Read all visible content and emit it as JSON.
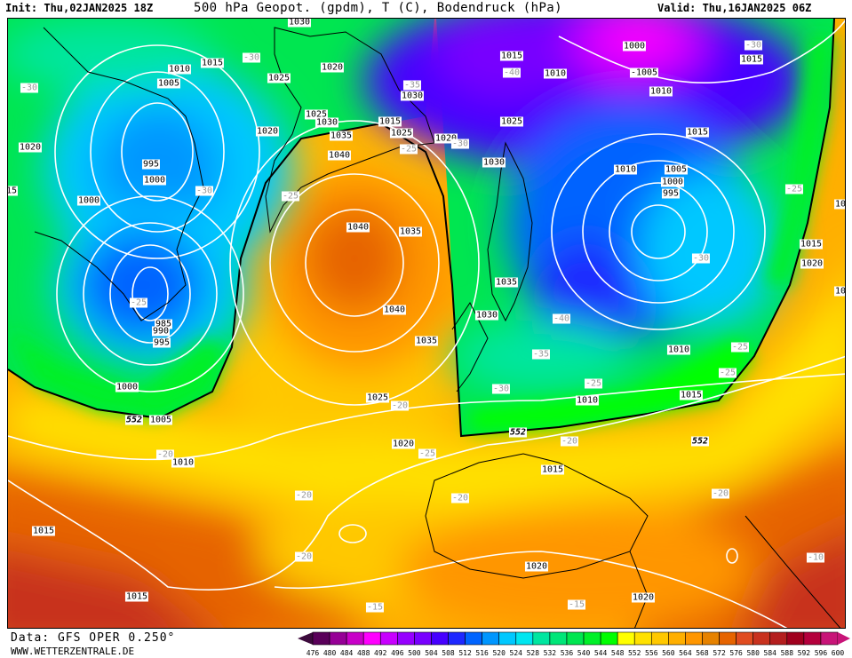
{
  "header": {
    "init": "Init: Thu,02JAN2025 18Z",
    "title": "500 hPa Geopot. (gpdm), T (C), Bodendruck (hPa)",
    "valid": "Valid: Thu,16JAN2025 06Z"
  },
  "footer": {
    "data_source": "Data: GFS OPER 0.250°",
    "website": "WWW.WETTERZENTRALE.DE"
  },
  "legend": {
    "labels": [
      "476",
      "480",
      "484",
      "488",
      "492",
      "496",
      "500",
      "504",
      "508",
      "512",
      "516",
      "520",
      "524",
      "528",
      "532",
      "536",
      "540",
      "544",
      "548",
      "552",
      "556",
      "560",
      "564",
      "568",
      "572",
      "576",
      "580",
      "584",
      "588",
      "592",
      "596",
      "600"
    ],
    "colors": [
      "#5a005a",
      "#960096",
      "#c800c8",
      "#ff00ff",
      "#c800ff",
      "#9600ff",
      "#7800ff",
      "#4600ff",
      "#1e28ff",
      "#0064ff",
      "#0096ff",
      "#00c8ff",
      "#00e6f0",
      "#00e6a0",
      "#00e678",
      "#00e650",
      "#00f028",
      "#00ff00",
      "#ffff00",
      "#ffe100",
      "#ffc800",
      "#ffaf00",
      "#ff9600",
      "#e68200",
      "#e66400",
      "#e04c20",
      "#c8321e",
      "#b41e1e",
      "#a0001e",
      "#b4003c",
      "#c81478"
    ],
    "below_color": "#3c0a3c",
    "above_color": "#c81478"
  },
  "map": {
    "contour_552_color": "#000000",
    "isobar_color": "#ffffff",
    "isotherm_color": "#a0a0a0",
    "labels": [
      {
        "text": "1030",
        "kind": "p"
      },
      {
        "text": "1015",
        "kind": "p"
      },
      {
        "text": "1010",
        "kind": "p"
      },
      {
        "text": "1005",
        "kind": "p"
      },
      {
        "text": "1025",
        "kind": "p"
      },
      {
        "text": "1020",
        "kind": "p"
      },
      {
        "text": "-30",
        "kind": "t"
      },
      {
        "text": "-30",
        "kind": "t"
      },
      {
        "text": "1020",
        "kind": "p"
      },
      {
        "text": "995",
        "kind": "p"
      },
      {
        "text": "1000",
        "kind": "p"
      },
      {
        "text": "15",
        "kind": "p"
      },
      {
        "text": "1000",
        "kind": "p"
      },
      {
        "text": "1020",
        "kind": "p"
      },
      {
        "text": "1025",
        "kind": "p"
      },
      {
        "text": "1030",
        "kind": "p"
      },
      {
        "text": "1035",
        "kind": "p"
      },
      {
        "text": "1040",
        "kind": "p"
      },
      {
        "text": "1015",
        "kind": "p"
      },
      {
        "text": "1025",
        "kind": "p"
      },
      {
        "text": "-25",
        "kind": "t"
      },
      {
        "text": "-35",
        "kind": "t"
      },
      {
        "text": "1030",
        "kind": "p"
      },
      {
        "text": "-30",
        "kind": "t"
      },
      {
        "text": "-25",
        "kind": "t"
      },
      {
        "text": "1040",
        "kind": "p"
      },
      {
        "text": "1035",
        "kind": "p"
      },
      {
        "text": "1040",
        "kind": "p"
      },
      {
        "text": "-25",
        "kind": "t"
      },
      {
        "text": "985",
        "kind": "p"
      },
      {
        "text": "990",
        "kind": "p"
      },
      {
        "text": "995",
        "kind": "p"
      },
      {
        "text": "1000",
        "kind": "p"
      },
      {
        "text": "552",
        "kind": "c"
      },
      {
        "text": "1005",
        "kind": "p"
      },
      {
        "text": "-20",
        "kind": "t"
      },
      {
        "text": "1010",
        "kind": "p"
      },
      {
        "text": "1015",
        "kind": "p"
      },
      {
        "text": "1015",
        "kind": "p"
      },
      {
        "text": "-20",
        "kind": "t"
      },
      {
        "text": "-20",
        "kind": "t"
      },
      {
        "text": "-15",
        "kind": "t"
      },
      {
        "text": "1025",
        "kind": "p"
      },
      {
        "text": "-20",
        "kind": "t"
      },
      {
        "text": "1020",
        "kind": "p"
      },
      {
        "text": "1035",
        "kind": "p"
      },
      {
        "text": "1015",
        "kind": "p"
      },
      {
        "text": "-40",
        "kind": "t"
      },
      {
        "text": "1010",
        "kind": "p"
      },
      {
        "text": "1000",
        "kind": "p"
      },
      {
        "text": "-1005",
        "kind": "p"
      },
      {
        "text": "1010",
        "kind": "p"
      },
      {
        "text": "-30",
        "kind": "t"
      },
      {
        "text": "1015",
        "kind": "p"
      },
      {
        "text": "1025",
        "kind": "p"
      },
      {
        "text": "1020",
        "kind": "p"
      },
      {
        "text": "-30",
        "kind": "t"
      },
      {
        "text": "1030",
        "kind": "p"
      },
      {
        "text": "1015",
        "kind": "p"
      },
      {
        "text": "1010",
        "kind": "p"
      },
      {
        "text": "1005",
        "kind": "p"
      },
      {
        "text": "1000",
        "kind": "p"
      },
      {
        "text": "995",
        "kind": "p"
      },
      {
        "text": "-25",
        "kind": "t"
      },
      {
        "text": "1015",
        "kind": "p"
      },
      {
        "text": "1020",
        "kind": "p"
      },
      {
        "text": "10",
        "kind": "p"
      },
      {
        "text": "10",
        "kind": "p"
      },
      {
        "text": "-30",
        "kind": "t"
      },
      {
        "text": "1035",
        "kind": "p"
      },
      {
        "text": "1030",
        "kind": "p"
      },
      {
        "text": "-40",
        "kind": "t"
      },
      {
        "text": "-35",
        "kind": "t"
      },
      {
        "text": "-30",
        "kind": "t"
      },
      {
        "text": "-25",
        "kind": "t"
      },
      {
        "text": "1010",
        "kind": "p"
      },
      {
        "text": "-25",
        "kind": "t"
      },
      {
        "text": "-25",
        "kind": "t"
      },
      {
        "text": "1010",
        "kind": "p"
      },
      {
        "text": "1015",
        "kind": "p"
      },
      {
        "text": "552",
        "kind": "c"
      },
      {
        "text": "-20",
        "kind": "t"
      },
      {
        "text": "-25",
        "kind": "t"
      },
      {
        "text": "552",
        "kind": "c"
      },
      {
        "text": "1015",
        "kind": "p"
      },
      {
        "text": "-20",
        "kind": "t"
      },
      {
        "text": "-20",
        "kind": "t"
      },
      {
        "text": "1020",
        "kind": "p"
      },
      {
        "text": "1020",
        "kind": "p"
      },
      {
        "text": "-15",
        "kind": "t"
      },
      {
        "text": "-10",
        "kind": "t"
      }
    ]
  }
}
